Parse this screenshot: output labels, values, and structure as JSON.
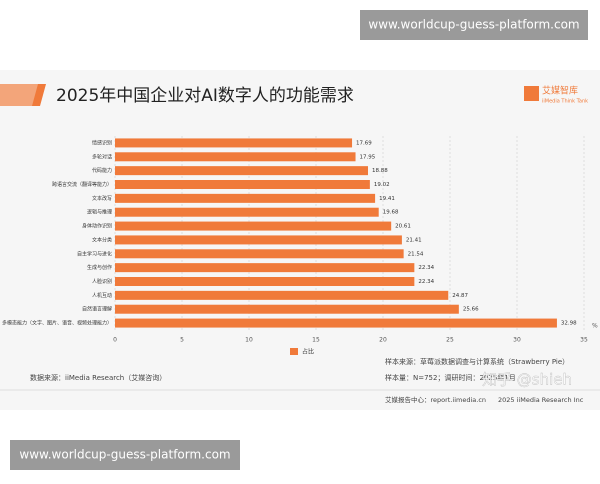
{
  "watermark_top": "www.worldcup-guess-platform.com",
  "watermark_bottom": "www.worldcup-guess-platform.com",
  "logo": {
    "name": "艾媒智库",
    "subtitle": "iiMedia Think Tank"
  },
  "chart_data": {
    "type": "bar",
    "orientation": "horizontal",
    "title": "2025年中国企业对AI数字人的功能需求",
    "categories": [
      "情感识别",
      "多轮对话",
      "代码能力",
      "跨语言交流（翻译等能力）",
      "文本改写",
      "逻辑与推理",
      "身体动作识别",
      "文本分类",
      "自主学习与进化",
      "生成与创作",
      "人脸识别",
      "人机互动",
      "自然语言理解",
      "多模态能力（文字、图片、语音、视频处理能力）"
    ],
    "series": [
      {
        "name": "占比",
        "color": "#f07a3a",
        "values": [
          17.69,
          17.95,
          18.88,
          19.02,
          19.41,
          19.68,
          20.61,
          21.41,
          21.54,
          22.34,
          22.34,
          24.87,
          25.66,
          32.98
        ]
      }
    ],
    "xlim": [
      0,
      35
    ],
    "xticks": [
      0,
      5,
      10,
      15,
      20,
      25,
      30,
      35
    ],
    "x_unit": "%",
    "grid": true,
    "legend": "bottom"
  },
  "notes": {
    "data_source": "数据来源：iiMedia Research（艾媒咨询）",
    "sample_source": "样本来源：草莓派数据调查与计算系统（Strawberry Pie）",
    "sample_size": "样本量：N=752；调研时间：2025年1月",
    "footer_site": "艾媒报告中心：report.iimedia.cn",
    "footer_copy": "2025 iiMedia Research Inc",
    "zhihu": "知乎 @shieh"
  }
}
